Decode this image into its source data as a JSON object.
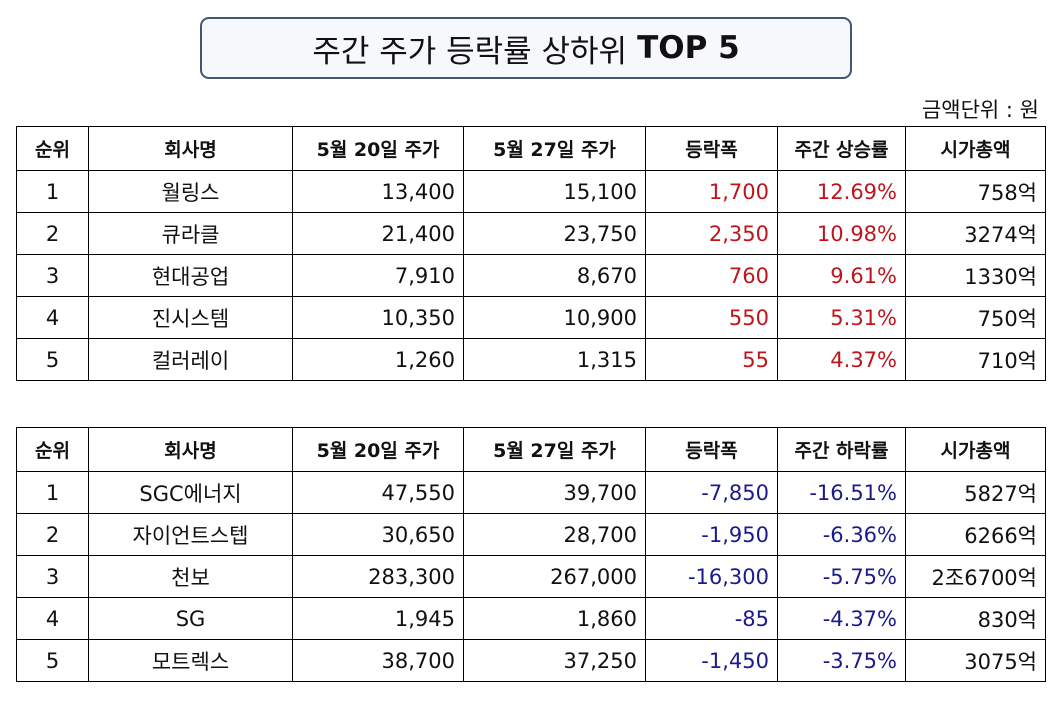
{
  "title": {
    "text": "주간 주가 등락률 상하위",
    "bold": "TOP 5"
  },
  "unit_label": "금액단위 : 원",
  "colors": {
    "rise": "#c0141c",
    "fall": "#1a1a8c",
    "title_border": "#3f5675"
  },
  "gainers": {
    "headers": [
      "순위",
      "회사명",
      "5월 20일 주가",
      "5월 27일 주가",
      "등락폭",
      "주간 상승률",
      "시가총액"
    ],
    "rows": [
      [
        "1",
        "월링스",
        "13,400",
        "15,100",
        "1,700",
        "12.69%",
        "758억"
      ],
      [
        "2",
        "큐라클",
        "21,400",
        "23,750",
        "2,350",
        "10.98%",
        "3274억"
      ],
      [
        "3",
        "현대공업",
        "7,910",
        "8,670",
        "760",
        "9.61%",
        "1330억"
      ],
      [
        "4",
        "진시스템",
        "10,350",
        "10,900",
        "550",
        "5.31%",
        "750억"
      ],
      [
        "5",
        "컬러레이",
        "1,260",
        "1,315",
        "55",
        "4.37%",
        "710억"
      ]
    ]
  },
  "losers": {
    "headers": [
      "순위",
      "회사명",
      "5월 20일 주가",
      "5월 27일 주가",
      "등락폭",
      "주간 하락률",
      "시가총액"
    ],
    "rows": [
      [
        "1",
        "SGC에너지",
        "47,550",
        "39,700",
        "-7,850",
        "-16.51%",
        "5827억"
      ],
      [
        "2",
        "자이언트스텝",
        "30,650",
        "28,700",
        "-1,950",
        "-6.36%",
        "6266억"
      ],
      [
        "3",
        "천보",
        "283,300",
        "267,000",
        "-16,300",
        "-5.75%",
        "2조6700억"
      ],
      [
        "4",
        "SG",
        "1,945",
        "1,860",
        "-85",
        "-4.37%",
        "830억"
      ],
      [
        "5",
        "모트렉스",
        "38,700",
        "37,250",
        "-1,450",
        "-3.75%",
        "3075억"
      ]
    ]
  }
}
